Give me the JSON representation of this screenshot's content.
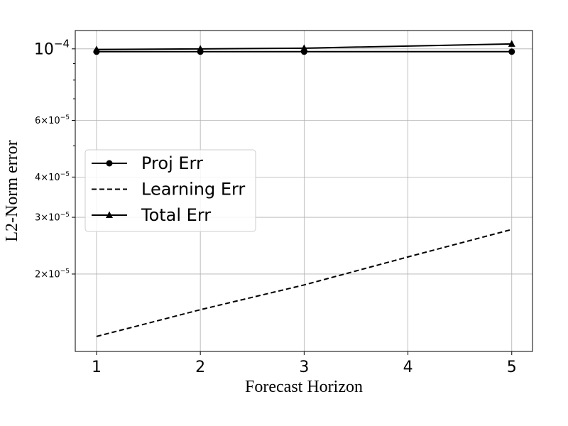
{
  "chart_data": {
    "type": "line",
    "x_label": "Forecast Horizon",
    "y_label": "L2-Norm error",
    "log_y": true,
    "grid": true,
    "legend_position": "center left",
    "xlim": [
      0.795,
      5.2
    ],
    "xticks": [
      1,
      2,
      3,
      4,
      5
    ],
    "ylim": [
      1.15e-05,
      0.000114
    ],
    "yticks": [
      {
        "value": 0.0001,
        "label": "10",
        "exponent": "−4"
      },
      {
        "value": 6e-05,
        "label": "6×10",
        "exponent": "−5"
      },
      {
        "value": 4e-05,
        "label": "4×10",
        "exponent": "−5"
      },
      {
        "value": 3e-05,
        "label": "3×10",
        "exponent": "−5"
      },
      {
        "value": 2e-05,
        "label": "2×10",
        "exponent": "−5"
      }
    ],
    "minor_yticks": [
      9e-05,
      8e-05,
      7e-05,
      5e-05
    ],
    "series": [
      {
        "name": "Proj Err",
        "color": "#000000",
        "dash": "solid",
        "marker": "circle",
        "x": [
          1,
          2,
          3,
          5
        ],
        "values": [
          9.8e-05,
          9.8e-05,
          9.8e-05,
          9.8e-05
        ]
      },
      {
        "name": "Learning Err",
        "color": "#000000",
        "dash": "dashed",
        "marker": "none",
        "x": [
          1,
          2,
          3,
          4,
          5
        ],
        "values": [
          1.28e-05,
          1.55e-05,
          1.85e-05,
          2.26e-05,
          2.75e-05
        ]
      },
      {
        "name": "Total Err",
        "color": "#000000",
        "dash": "solid",
        "marker": "triangle",
        "x": [
          1,
          2,
          3,
          5
        ],
        "values": [
          9.95e-05,
          0.0001,
          0.0001005,
          0.0001036
        ]
      }
    ]
  }
}
